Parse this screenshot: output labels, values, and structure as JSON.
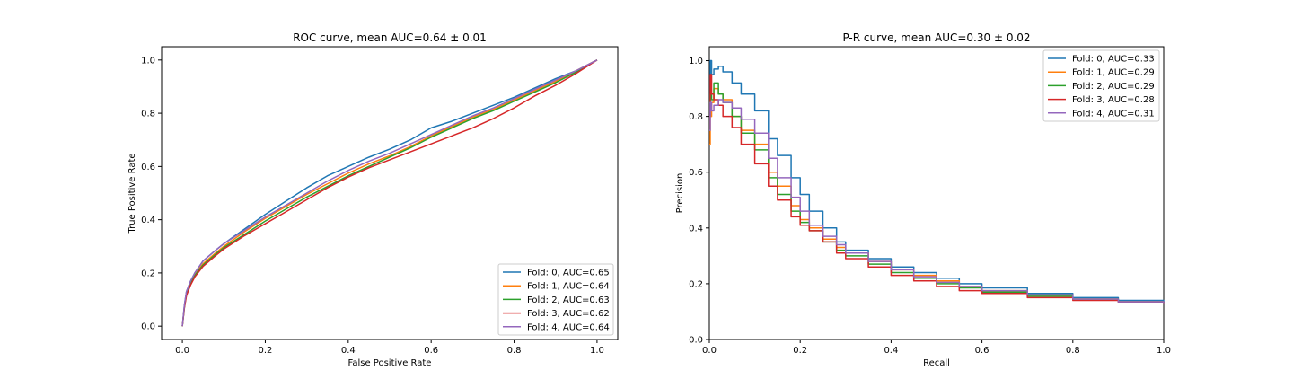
{
  "chart_data": [
    {
      "type": "line",
      "title": "ROC curve, mean AUC=0.64 ± 0.01",
      "xlabel": "False Positive Rate",
      "ylabel": "True Positive Rate",
      "xlim": [
        -0.05,
        1.05
      ],
      "ylim": [
        -0.05,
        1.05
      ],
      "xticks": [
        0.0,
        0.2,
        0.4,
        0.6,
        0.8,
        1.0
      ],
      "yticks": [
        0.0,
        0.2,
        0.4,
        0.6,
        0.8,
        1.0
      ],
      "tick_labels_x": [
        "0.0",
        "0.2",
        "0.4",
        "0.6",
        "0.8",
        "1.0"
      ],
      "tick_labels_y": [
        "0.0",
        "0.2",
        "0.4",
        "0.6",
        "0.8",
        "1.0"
      ],
      "grid": false,
      "legend_position": "lower-right",
      "series": [
        {
          "name": "Fold: 0, AUC=0.65",
          "color": "#1f77b4",
          "x": [
            0,
            0.005,
            0.01,
            0.02,
            0.03,
            0.05,
            0.08,
            0.1,
            0.15,
            0.2,
            0.25,
            0.3,
            0.35,
            0.4,
            0.45,
            0.5,
            0.55,
            0.6,
            0.65,
            0.7,
            0.75,
            0.8,
            0.85,
            0.9,
            0.95,
            1.0
          ],
          "y": [
            0,
            0.08,
            0.13,
            0.17,
            0.2,
            0.245,
            0.285,
            0.31,
            0.365,
            0.42,
            0.47,
            0.52,
            0.565,
            0.6,
            0.635,
            0.665,
            0.7,
            0.745,
            0.77,
            0.8,
            0.83,
            0.86,
            0.895,
            0.93,
            0.96,
            1.0
          ]
        },
        {
          "name": "Fold: 1, AUC=0.64",
          "color": "#ff7f0e",
          "x": [
            0,
            0.005,
            0.01,
            0.02,
            0.03,
            0.05,
            0.08,
            0.1,
            0.15,
            0.2,
            0.25,
            0.3,
            0.35,
            0.4,
            0.45,
            0.5,
            0.55,
            0.6,
            0.65,
            0.7,
            0.75,
            0.8,
            0.85,
            0.9,
            0.95,
            1.0
          ],
          "y": [
            0,
            0.075,
            0.125,
            0.165,
            0.195,
            0.235,
            0.275,
            0.3,
            0.355,
            0.405,
            0.45,
            0.495,
            0.535,
            0.575,
            0.61,
            0.64,
            0.675,
            0.715,
            0.75,
            0.785,
            0.815,
            0.85,
            0.885,
            0.92,
            0.96,
            1.0
          ]
        },
        {
          "name": "Fold: 2, AUC=0.63",
          "color": "#2ca02c",
          "x": [
            0,
            0.005,
            0.01,
            0.02,
            0.03,
            0.05,
            0.08,
            0.1,
            0.15,
            0.2,
            0.25,
            0.3,
            0.35,
            0.4,
            0.45,
            0.5,
            0.55,
            0.6,
            0.65,
            0.7,
            0.75,
            0.8,
            0.85,
            0.9,
            0.95,
            1.0
          ],
          "y": [
            0,
            0.07,
            0.12,
            0.16,
            0.19,
            0.23,
            0.27,
            0.295,
            0.345,
            0.395,
            0.44,
            0.485,
            0.525,
            0.565,
            0.6,
            0.635,
            0.67,
            0.71,
            0.745,
            0.78,
            0.81,
            0.845,
            0.88,
            0.915,
            0.955,
            1.0
          ]
        },
        {
          "name": "Fold: 3, AUC=0.62",
          "color": "#d62728",
          "x": [
            0,
            0.005,
            0.01,
            0.02,
            0.03,
            0.05,
            0.08,
            0.1,
            0.15,
            0.2,
            0.25,
            0.3,
            0.35,
            0.4,
            0.45,
            0.5,
            0.55,
            0.6,
            0.65,
            0.7,
            0.75,
            0.8,
            0.85,
            0.9,
            0.95,
            1.0
          ],
          "y": [
            0,
            0.07,
            0.115,
            0.155,
            0.185,
            0.225,
            0.265,
            0.29,
            0.34,
            0.385,
            0.43,
            0.475,
            0.52,
            0.56,
            0.595,
            0.625,
            0.655,
            0.685,
            0.715,
            0.745,
            0.78,
            0.82,
            0.865,
            0.905,
            0.95,
            1.0
          ]
        },
        {
          "name": "Fold: 4, AUC=0.64",
          "color": "#9467bd",
          "x": [
            0,
            0.005,
            0.01,
            0.02,
            0.03,
            0.05,
            0.08,
            0.1,
            0.15,
            0.2,
            0.25,
            0.3,
            0.35,
            0.4,
            0.45,
            0.5,
            0.55,
            0.6,
            0.65,
            0.7,
            0.75,
            0.8,
            0.85,
            0.9,
            0.95,
            1.0
          ],
          "y": [
            0,
            0.08,
            0.13,
            0.17,
            0.2,
            0.245,
            0.285,
            0.31,
            0.36,
            0.41,
            0.455,
            0.5,
            0.545,
            0.585,
            0.62,
            0.65,
            0.685,
            0.72,
            0.755,
            0.79,
            0.82,
            0.855,
            0.89,
            0.925,
            0.96,
            1.0
          ]
        }
      ]
    },
    {
      "type": "line",
      "title": "P-R curve, mean AUC=0.30 ± 0.02",
      "xlabel": "Recall",
      "ylabel": "Precision",
      "xlim": [
        0,
        1
      ],
      "ylim": [
        0,
        1.05
      ],
      "xticks": [
        0.0,
        0.2,
        0.4,
        0.6,
        0.8,
        1.0
      ],
      "yticks": [
        0.0,
        0.2,
        0.4,
        0.6,
        0.8,
        1.0
      ],
      "tick_labels_x": [
        "0.0",
        "0.2",
        "0.4",
        "0.6",
        "0.8",
        "1.0"
      ],
      "tick_labels_y": [
        "0.0",
        "0.2",
        "0.4",
        "0.6",
        "0.8",
        "1.0"
      ],
      "grid": false,
      "legend_position": "top-right",
      "series": [
        {
          "name": "Fold: 0, AUC=0.33",
          "color": "#1f77b4",
          "x": [
            0,
            0.002,
            0.005,
            0.01,
            0.02,
            0.03,
            0.05,
            0.07,
            0.1,
            0.13,
            0.15,
            0.18,
            0.2,
            0.22,
            0.25,
            0.28,
            0.3,
            0.35,
            0.4,
            0.45,
            0.5,
            0.55,
            0.6,
            0.7,
            0.8,
            0.9,
            1.0
          ],
          "y": [
            0.8,
            1.0,
            0.95,
            0.97,
            0.98,
            0.96,
            0.92,
            0.88,
            0.82,
            0.72,
            0.66,
            0.58,
            0.52,
            0.46,
            0.4,
            0.35,
            0.32,
            0.29,
            0.26,
            0.24,
            0.22,
            0.2,
            0.185,
            0.165,
            0.15,
            0.14,
            0.13
          ]
        },
        {
          "name": "Fold: 1, AUC=0.29",
          "color": "#ff7f0e",
          "x": [
            0,
            0.002,
            0.005,
            0.01,
            0.02,
            0.03,
            0.05,
            0.07,
            0.1,
            0.13,
            0.15,
            0.18,
            0.2,
            0.22,
            0.25,
            0.28,
            0.3,
            0.35,
            0.4,
            0.45,
            0.5,
            0.55,
            0.6,
            0.7,
            0.8,
            0.9,
            1.0
          ],
          "y": [
            0.7,
            0.8,
            0.85,
            0.9,
            0.88,
            0.86,
            0.8,
            0.75,
            0.7,
            0.6,
            0.55,
            0.48,
            0.43,
            0.4,
            0.36,
            0.33,
            0.31,
            0.28,
            0.25,
            0.23,
            0.21,
            0.19,
            0.175,
            0.16,
            0.145,
            0.135,
            0.13
          ]
        },
        {
          "name": "Fold: 2, AUC=0.29",
          "color": "#2ca02c",
          "x": [
            0,
            0.002,
            0.005,
            0.01,
            0.02,
            0.03,
            0.05,
            0.07,
            0.1,
            0.13,
            0.15,
            0.18,
            0.2,
            0.22,
            0.25,
            0.28,
            0.3,
            0.35,
            0.4,
            0.45,
            0.5,
            0.55,
            0.6,
            0.7,
            0.8,
            0.9,
            1.0
          ],
          "y": [
            0.85,
            0.88,
            0.86,
            0.92,
            0.88,
            0.85,
            0.8,
            0.74,
            0.68,
            0.58,
            0.52,
            0.46,
            0.42,
            0.39,
            0.35,
            0.32,
            0.3,
            0.27,
            0.24,
            0.22,
            0.2,
            0.185,
            0.17,
            0.155,
            0.145,
            0.135,
            0.13
          ]
        },
        {
          "name": "Fold: 3, AUC=0.28",
          "color": "#d62728",
          "x": [
            0,
            0.002,
            0.005,
            0.01,
            0.02,
            0.03,
            0.05,
            0.07,
            0.1,
            0.13,
            0.15,
            0.18,
            0.2,
            0.22,
            0.25,
            0.28,
            0.3,
            0.35,
            0.4,
            0.45,
            0.5,
            0.55,
            0.6,
            0.7,
            0.8,
            0.9,
            1.0
          ],
          "y": [
            0.8,
            0.95,
            0.88,
            0.86,
            0.84,
            0.8,
            0.76,
            0.7,
            0.63,
            0.55,
            0.5,
            0.44,
            0.41,
            0.39,
            0.35,
            0.31,
            0.29,
            0.26,
            0.23,
            0.21,
            0.19,
            0.175,
            0.165,
            0.15,
            0.14,
            0.135,
            0.13
          ]
        },
        {
          "name": "Fold: 4, AUC=0.31",
          "color": "#9467bd",
          "x": [
            0,
            0.002,
            0.005,
            0.01,
            0.02,
            0.03,
            0.05,
            0.07,
            0.1,
            0.13,
            0.15,
            0.18,
            0.2,
            0.22,
            0.25,
            0.28,
            0.3,
            0.35,
            0.4,
            0.45,
            0.5,
            0.55,
            0.6,
            0.7,
            0.8,
            0.9,
            1.0
          ],
          "y": [
            0.75,
            0.85,
            0.82,
            0.84,
            0.86,
            0.85,
            0.83,
            0.79,
            0.74,
            0.65,
            0.58,
            0.51,
            0.46,
            0.41,
            0.37,
            0.34,
            0.31,
            0.28,
            0.25,
            0.225,
            0.205,
            0.19,
            0.175,
            0.16,
            0.145,
            0.135,
            0.13
          ]
        }
      ]
    }
  ]
}
